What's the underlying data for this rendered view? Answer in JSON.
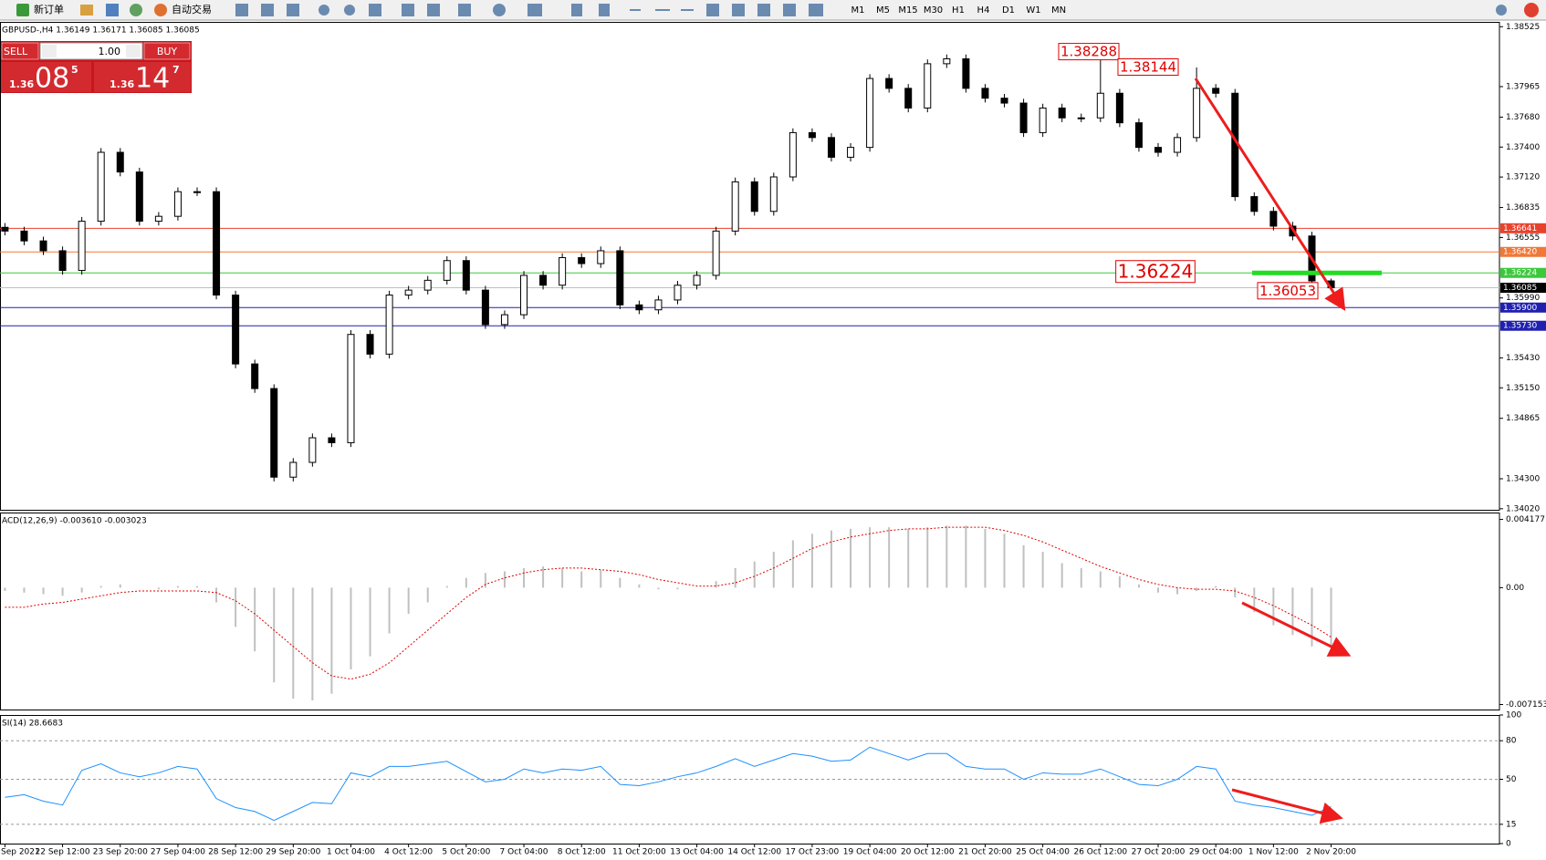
{
  "toolbar": {
    "new_order": "新订单",
    "auto_trading": "自动交易",
    "timeframes": [
      "M1",
      "M5",
      "M15",
      "M30",
      "H1",
      "H4",
      "D1",
      "W1",
      "MN"
    ]
  },
  "trade_panel": {
    "sell": "SELL",
    "lots": "1.00",
    "buy": "BUY",
    "sell_price": {
      "prefix": "1.36",
      "big": "08",
      "small": "5"
    },
    "buy_price": {
      "prefix": "1.36",
      "big": "14",
      "small": "7"
    }
  },
  "chart_data": [
    {
      "type": "candlestick",
      "title": "GBPUSD-,H4  1.36149 1.36171 1.36085 1.36085",
      "categories": [
        "Sep 2021",
        null,
        null,
        "22 Sep 12:00",
        null,
        null,
        "23 Sep 20:00",
        null,
        null,
        "27 Sep 04:00",
        null,
        null,
        "28 Sep 12:00",
        null,
        null,
        "29 Sep 20:00",
        null,
        null,
        "1 Oct 04:00",
        null,
        null,
        "4 Oct 12:00",
        null,
        null,
        "5 Oct 20:00",
        null,
        null,
        "7 Oct 04:00",
        null,
        null,
        "8 Oct 12:00",
        null,
        null,
        "11 Oct 20:00",
        null,
        null,
        "13 Oct 04:00",
        null,
        null,
        "14 Oct 12:00",
        null,
        null,
        "17 Oct 23:00",
        null,
        null,
        "19 Oct 04:00",
        null,
        null,
        "20 Oct 12:00",
        null,
        null,
        "21 Oct 20:00",
        null,
        null,
        "25 Oct 04:00",
        null,
        null,
        "26 Oct 12:00",
        null,
        null,
        "27 Oct 20:00",
        null,
        null,
        "29 Oct 04:00",
        null,
        null,
        "1 Nov 12:00",
        null,
        null,
        "2 Nov 20:00"
      ],
      "open": [
        1.3665,
        1.36615,
        1.36523,
        1.36431,
        1.36247,
        1.36707,
        1.37351,
        1.37167,
        1.36707,
        1.36753,
        1.36983,
        1.36983,
        1.36017,
        1.35373,
        1.35143,
        1.34315,
        1.34453,
        1.34683,
        1.34637,
        1.35649,
        1.35465,
        1.36017,
        1.36063,
        1.36155,
        1.36339,
        1.36063,
        1.35741,
        1.35833,
        1.36201,
        1.36109,
        1.36367,
        1.36311,
        1.36431,
        1.35925,
        1.35879,
        1.35971,
        1.36109,
        1.36201,
        1.36615,
        1.37075,
        1.36799,
        1.37121,
        1.37535,
        1.37489,
        1.37305,
        1.37397,
        1.38041,
        1.37949,
        1.37765,
        1.38179,
        1.38225,
        1.37949,
        1.37857,
        1.37811,
        1.37535,
        1.37765,
        1.37673,
        1.37673,
        1.37903,
        1.37627,
        1.37397,
        1.37351,
        1.37489,
        1.37949,
        1.37903,
        1.36937,
        1.36799,
        1.36661,
        1.36569,
        1.36149
      ],
      "high": [
        1.3669,
        1.36655,
        1.36563,
        1.36471,
        1.36747,
        1.37391,
        1.37391,
        1.37207,
        1.36793,
        1.37023,
        1.37023,
        1.37023,
        1.36057,
        1.35413,
        1.35183,
        1.34493,
        1.34723,
        1.34723,
        1.35689,
        1.35689,
        1.36057,
        1.36103,
        1.36195,
        1.36379,
        1.36379,
        1.36103,
        1.35873,
        1.36241,
        1.36241,
        1.36407,
        1.36407,
        1.36471,
        1.36471,
        1.35965,
        1.36011,
        1.36149,
        1.36241,
        1.36655,
        1.37115,
        1.37115,
        1.37161,
        1.37575,
        1.37575,
        1.37529,
        1.37437,
        1.38081,
        1.38081,
        1.37989,
        1.38219,
        1.38265,
        1.38265,
        1.37989,
        1.37897,
        1.37851,
        1.37805,
        1.37805,
        1.37713,
        1.38288,
        1.37943,
        1.37667,
        1.37437,
        1.37529,
        1.38144,
        1.37989,
        1.37943,
        1.36977,
        1.36839,
        1.36701,
        1.36609,
        1.36171
      ],
      "low": [
        1.36575,
        1.36483,
        1.36391,
        1.36207,
        1.36207,
        1.36667,
        1.37127,
        1.36667,
        1.36667,
        1.36713,
        1.36943,
        1.35977,
        1.35333,
        1.35103,
        1.34275,
        1.34275,
        1.34413,
        1.34597,
        1.34597,
        1.35425,
        1.35425,
        1.35977,
        1.36023,
        1.36115,
        1.36023,
        1.35701,
        1.35701,
        1.35793,
        1.36069,
        1.36069,
        1.36271,
        1.36271,
        1.35885,
        1.35839,
        1.35839,
        1.35931,
        1.36069,
        1.36161,
        1.36575,
        1.36759,
        1.36759,
        1.37081,
        1.37449,
        1.37265,
        1.37265,
        1.37357,
        1.37909,
        1.37725,
        1.37725,
        1.38139,
        1.37909,
        1.37817,
        1.37771,
        1.37495,
        1.37495,
        1.37633,
        1.37633,
        1.37633,
        1.37587,
        1.37357,
        1.37311,
        1.37311,
        1.37449,
        1.37863,
        1.36897,
        1.36759,
        1.36621,
        1.36529,
        1.36053,
        1.36085
      ],
      "close": [
        1.36615,
        1.36523,
        1.36431,
        1.36247,
        1.36707,
        1.37351,
        1.37167,
        1.36707,
        1.36753,
        1.36983,
        1.36983,
        1.36017,
        1.35373,
        1.35143,
        1.34315,
        1.34453,
        1.34683,
        1.34637,
        1.35649,
        1.35465,
        1.36017,
        1.36063,
        1.36155,
        1.36339,
        1.36063,
        1.35741,
        1.35833,
        1.36201,
        1.36109,
        1.36367,
        1.36311,
        1.36431,
        1.35925,
        1.35879,
        1.35971,
        1.36109,
        1.36201,
        1.36615,
        1.37075,
        1.36799,
        1.37121,
        1.37535,
        1.37489,
        1.37305,
        1.37397,
        1.38041,
        1.37949,
        1.37765,
        1.38179,
        1.38225,
        1.37949,
        1.37857,
        1.37811,
        1.37535,
        1.37765,
        1.37673,
        1.37673,
        1.37903,
        1.37627,
        1.37397,
        1.37351,
        1.37489,
        1.37949,
        1.37903,
        1.36937,
        1.36799,
        1.36661,
        1.36569,
        1.36149,
        1.36085
      ],
      "ylim": [
        1.3401,
        1.3857
      ],
      "yticks": [
        1.38525,
        1.37965,
        {
          "value": 1.3768,
          "label": "1.37680"
        },
        {
          "value": 1.374,
          "label": "1.37400"
        },
        {
          "value": 1.3712,
          "label": "1.37120"
        },
        1.36835,
        1.36555,
        {
          "value": 1.3599,
          "label": "1.35990"
        },
        {
          "value": 1.3543,
          "label": "1.35430"
        },
        {
          "value": 1.3515,
          "label": "1.35150"
        },
        1.34865,
        {
          "value": 1.343,
          "label": "1.34300"
        },
        {
          "value": 1.3402,
          "label": "1.34020"
        }
      ],
      "levels": [
        {
          "value": 1.36641,
          "color": "#e8412c"
        },
        {
          "value": 1.3642,
          "label": "1.36420",
          "color": "#f07838"
        },
        {
          "value": 1.36224,
          "color": "#3cc83c"
        },
        {
          "value": 1.36085,
          "color": "#c0c0c0",
          "tag_color": "#000000"
        },
        {
          "value": 1.359,
          "label": "1.35900",
          "color": "#2020b0"
        },
        {
          "value": 1.3573,
          "label": "1.35730",
          "color": "#2020b0"
        }
      ],
      "annotations": [
        1.38288,
        1.38144,
        1.36224,
        1.36053
      ],
      "annotation_color": "#e00000"
    },
    {
      "type": "bar",
      "title": "ACD(12,26,9) -0.003610 -0.003023",
      "color": "#c0c0c0",
      "signal_color": "#e00000",
      "values": [
        -0.0002,
        -0.0003,
        -0.0004,
        -0.0005,
        -0.0003,
        0.0001,
        0.0002,
        0,
        -0.0001,
        0.0001,
        0.0001,
        -0.0009,
        -0.0024,
        -0.0039,
        -0.0058,
        -0.0068,
        -0.0069,
        -0.0065,
        -0.005,
        -0.0042,
        -0.0028,
        -0.0016,
        -0.0009,
        0.0001,
        0.0006,
        0.0009,
        0.001,
        0.0012,
        0.0013,
        0.0012,
        0.001,
        0.0011,
        0.0006,
        0.0002,
        -0.0001,
        -0.0001,
        0,
        0.0004,
        0.0012,
        0.0016,
        0.0022,
        0.0029,
        0.0033,
        0.0035,
        0.0036,
        0.0037,
        0.0037,
        0.0036,
        0.0037,
        0.0038,
        0.0038,
        0.0036,
        0.0033,
        0.0026,
        0.0022,
        0.0015,
        0.0012,
        0.001,
        0.0007,
        0.0002,
        -0.0003,
        -0.0004,
        -0.0002,
        0.0001,
        -0.0006,
        -0.0015,
        -0.0023,
        -0.0029,
        -0.0036,
        -0.00361
      ],
      "signal": [
        -0.0012,
        -0.0012,
        -0.001,
        -0.0009,
        -0.0007,
        -0.0005,
        -0.0003,
        -0.0002,
        -0.0002,
        -0.0002,
        -0.0002,
        -0.0003,
        -0.0008,
        -0.0016,
        -0.0026,
        -0.0036,
        -0.0046,
        -0.0054,
        -0.0056,
        -0.0053,
        -0.0046,
        -0.0036,
        -0.0026,
        -0.0016,
        -0.0006,
        0.0002,
        0.0006,
        0.0009,
        0.0011,
        0.0012,
        0.0012,
        0.0011,
        0.001,
        0.0008,
        0.0005,
        0.0003,
        0.0001,
        0.0001,
        0.0003,
        0.0007,
        0.0012,
        0.0018,
        0.0024,
        0.0028,
        0.0031,
        0.0033,
        0.0035,
        0.0036,
        0.0036,
        0.0037,
        0.0037,
        0.0037,
        0.0035,
        0.0032,
        0.0028,
        0.0023,
        0.0018,
        0.0013,
        0.0009,
        0.0005,
        0.0002,
        0,
        -0.0001,
        -0.0001,
        -0.0002,
        -0.0006,
        -0.0011,
        -0.0017,
        -0.0023,
        -0.003023
      ],
      "ylim": [
        -0.00746,
        0.0046
      ],
      "yticks": [
        0.004177,
        {
          "value": 0,
          "label": "0.00"
        },
        -0.007153
      ]
    },
    {
      "type": "line",
      "title": "SI(14) 28.6683",
      "color": "#1e90ff",
      "values": [
        36,
        38,
        33,
        30,
        57,
        62,
        55,
        52,
        55,
        60,
        58,
        35,
        28,
        25,
        18,
        25,
        32,
        31,
        55,
        52,
        60,
        60,
        62,
        64,
        56,
        48,
        50,
        58,
        55,
        58,
        57,
        60,
        46,
        45,
        48,
        52,
        55,
        60,
        66,
        60,
        65,
        70,
        68,
        64,
        65,
        75,
        70,
        65,
        70,
        70,
        60,
        58,
        58,
        50,
        55,
        54,
        54,
        58,
        52,
        46,
        45,
        50,
        60,
        58,
        33,
        30,
        28,
        25,
        22,
        28.6683
      ],
      "ylim": [
        0,
        100
      ],
      "yticks": [
        100,
        80,
        50,
        15,
        0
      ],
      "grid": "dashed"
    }
  ]
}
